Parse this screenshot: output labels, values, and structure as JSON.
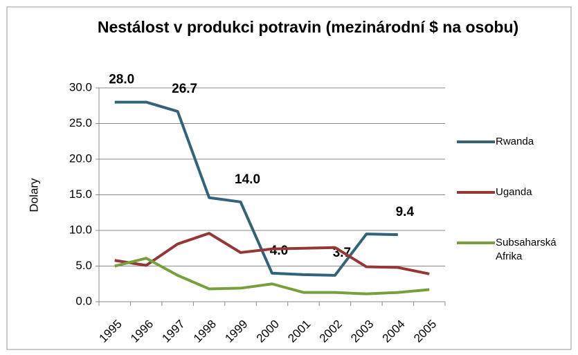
{
  "chart_data": {
    "type": "line",
    "title": "Nestálost v produkci potravin (mezinárodní $ na osobu)",
    "y_label": "Dolary",
    "categories": [
      "1995",
      "1996",
      "1997",
      "1998",
      "1999",
      "2000",
      "2001",
      "2002",
      "2003",
      "2004",
      "2005"
    ],
    "series": [
      {
        "name": "Rwanda",
        "color": "#31637a",
        "values": [
          28.0,
          28.0,
          26.7,
          14.6,
          14.0,
          4.0,
          3.8,
          3.7,
          9.5,
          9.4,
          null
        ],
        "value_labels": [
          "28.0",
          null,
          "26.7",
          null,
          "14.0",
          "4.0",
          null,
          "3.7",
          null,
          "9.4",
          null
        ]
      },
      {
        "name": "Uganda",
        "color": "#953735",
        "values": [
          5.8,
          5.1,
          8.1,
          9.6,
          6.9,
          7.4,
          7.5,
          7.6,
          4.9,
          4.8,
          3.9
        ]
      },
      {
        "name": "Subsaharská Afrika",
        "color": "#77a03c",
        "values": [
          5.0,
          6.1,
          3.7,
          1.8,
          1.9,
          2.5,
          1.3,
          1.3,
          1.1,
          1.3,
          1.7
        ]
      }
    ],
    "ylim": [
      0,
      30
    ],
    "yticks": [
      {
        "value": 0,
        "label": "0.0"
      },
      {
        "value": 5,
        "label": "5.0"
      },
      {
        "value": 10,
        "label": "10.0"
      },
      {
        "value": 15,
        "label": "15.0"
      },
      {
        "value": 20,
        "label": "20.0"
      },
      {
        "value": 25,
        "label": "25.0"
      },
      {
        "value": 30,
        "label": "30.0"
      }
    ],
    "grid": true
  }
}
